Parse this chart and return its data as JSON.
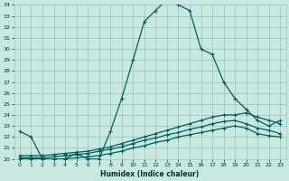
{
  "xlabel": "Humidex (Indice chaleur)",
  "xlim": [
    -0.5,
    23.5
  ],
  "ylim": [
    20,
    34
  ],
  "yticks": [
    20,
    21,
    22,
    23,
    24,
    25,
    26,
    27,
    28,
    29,
    30,
    31,
    32,
    33,
    34
  ],
  "xticks": [
    0,
    1,
    2,
    3,
    4,
    5,
    6,
    7,
    8,
    9,
    10,
    11,
    12,
    13,
    14,
    15,
    16,
    17,
    18,
    19,
    20,
    21,
    22,
    23
  ],
  "bg_color": "#c8e8e0",
  "grid_color": "#9ec8c0",
  "line_color": "#006060",
  "series1_y": [
    22.5,
    22.0,
    20.0,
    20.0,
    20.0,
    20.5,
    20.0,
    20.0,
    22.5,
    25.5,
    29.0,
    32.5,
    33.5,
    34.5,
    34.0,
    33.5,
    30.0,
    29.5,
    27.0,
    25.5,
    24.5,
    23.5,
    23.0,
    23.5
  ],
  "series2_y": [
    20.3,
    20.3,
    20.3,
    20.4,
    20.5,
    20.6,
    20.7,
    20.9,
    21.1,
    21.4,
    21.7,
    22.0,
    22.3,
    22.6,
    22.9,
    23.2,
    23.5,
    23.8,
    24.0,
    24.0,
    24.2,
    23.8,
    23.5,
    23.2
  ],
  "series3_y": [
    20.1,
    20.1,
    20.1,
    20.2,
    20.3,
    20.4,
    20.5,
    20.7,
    20.9,
    21.1,
    21.4,
    21.7,
    21.9,
    22.2,
    22.4,
    22.7,
    22.9,
    23.2,
    23.4,
    23.5,
    23.2,
    22.8,
    22.6,
    22.3
  ],
  "series4_y": [
    20.0,
    20.0,
    20.0,
    20.0,
    20.0,
    20.1,
    20.2,
    20.3,
    20.5,
    20.7,
    21.0,
    21.2,
    21.5,
    21.7,
    22.0,
    22.2,
    22.4,
    22.6,
    22.8,
    23.0,
    22.8,
    22.3,
    22.1,
    22.0
  ]
}
